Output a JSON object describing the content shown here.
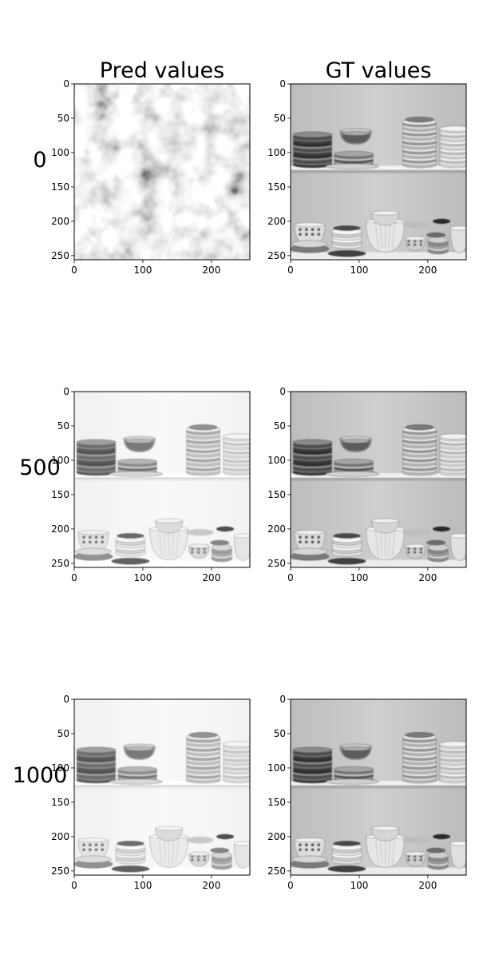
{
  "chart_data": {
    "type": "image-grid",
    "column_titles": [
      "Pred values",
      "GT values"
    ],
    "row_labels": [
      "0",
      "500",
      "1000"
    ],
    "panels": [
      {
        "row": 0,
        "col": 0,
        "image": "noise"
      },
      {
        "row": 0,
        "col": 1,
        "image": "gt"
      },
      {
        "row": 1,
        "col": 0,
        "image": "pred-500"
      },
      {
        "row": 1,
        "col": 1,
        "image": "gt"
      },
      {
        "row": 2,
        "col": 0,
        "image": "pred-1000"
      },
      {
        "row": 2,
        "col": 1,
        "image": "gt"
      }
    ],
    "x_ticks": [
      0,
      100,
      200
    ],
    "y_ticks": [
      0,
      50,
      100,
      150,
      200,
      250
    ],
    "xlim": [
      0,
      256
    ],
    "ylim": [
      256,
      0
    ],
    "colormap": "gray"
  }
}
